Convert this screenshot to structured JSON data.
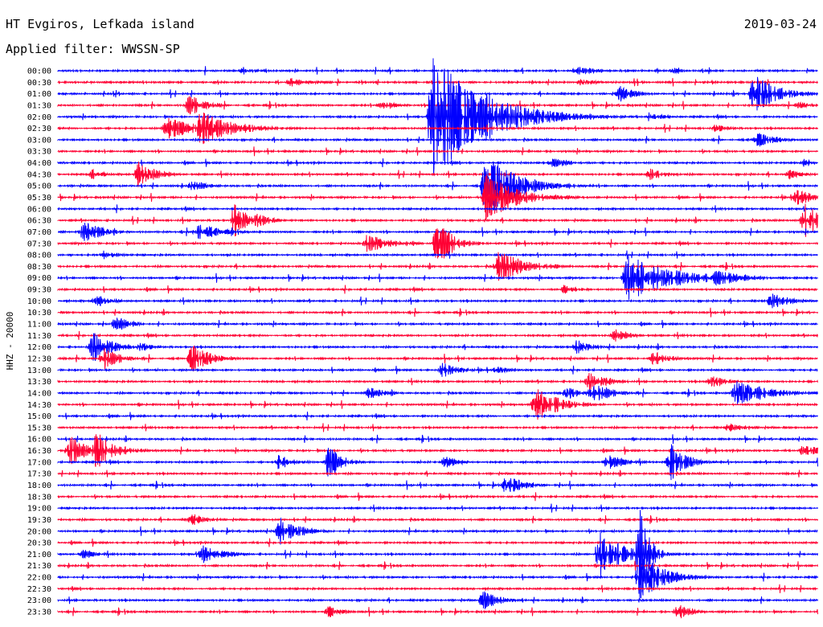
{
  "header": {
    "station": "HT Evgiros, Lefkada island",
    "date": "2019-03-24",
    "filter": "Applied filter: WWSSN-SP"
  },
  "colors": {
    "trace_a": "#0000ff",
    "trace_b": "#ff0033"
  },
  "chart_data": {
    "type": "line",
    "title": "HT Evgiros, Lefkada island",
    "ylabel": "HHZ - 20000",
    "tick_labels": [
      "00:00",
      "00:30",
      "01:00",
      "01:30",
      "02:00",
      "02:30",
      "03:00",
      "03:30",
      "04:00",
      "04:30",
      "05:00",
      "05:30",
      "06:00",
      "06:30",
      "07:00",
      "07:30",
      "08:00",
      "08:30",
      "09:00",
      "09:30",
      "10:00",
      "10:30",
      "11:00",
      "11:30",
      "12:00",
      "12:30",
      "13:00",
      "13:30",
      "14:00",
      "14:30",
      "15:00",
      "15:30",
      "16:00",
      "16:30",
      "17:00",
      "17:30",
      "18:00",
      "18:30",
      "19:00",
      "19:30",
      "20:00",
      "20:30",
      "21:00",
      "21:30",
      "22:00",
      "22:30",
      "23:00",
      "23:30"
    ],
    "row_color_pattern": [
      "trace_a",
      "trace_b"
    ],
    "trace_minutes": 30,
    "events": [
      {
        "row": "00:00",
        "minute": 7.3,
        "amp": 5,
        "dur": 0.8
      },
      {
        "row": "00:00",
        "minute": 20.5,
        "amp": 7,
        "dur": 1.2
      },
      {
        "row": "00:00",
        "minute": 24.3,
        "amp": 4,
        "dur": 0.6
      },
      {
        "row": "00:30",
        "minute": 9.2,
        "amp": 6,
        "dur": 1.4
      },
      {
        "row": "00:30",
        "minute": 20.5,
        "amp": 5,
        "dur": 1.2
      },
      {
        "row": "01:00",
        "minute": 22.2,
        "amp": 10,
        "dur": 1.0
      },
      {
        "row": "01:00",
        "minute": 27.5,
        "amp": 25,
        "dur": 1.5
      },
      {
        "row": "01:30",
        "minute": 5.2,
        "amp": 14,
        "dur": 1.0
      },
      {
        "row": "01:30",
        "minute": 12.8,
        "amp": 6,
        "dur": 1.0
      },
      {
        "row": "01:30",
        "minute": 29.3,
        "amp": 6,
        "dur": 0.6
      },
      {
        "row": "02:00",
        "minute": 14.8,
        "amp": 80,
        "dur": 3.0
      },
      {
        "row": "02:00",
        "minute": 16.9,
        "amp": 30,
        "dur": 3.0
      },
      {
        "row": "02:00",
        "minute": 23.5,
        "amp": 5,
        "dur": 1.0
      },
      {
        "row": "02:30",
        "minute": 4.3,
        "amp": 15,
        "dur": 1.8
      },
      {
        "row": "02:30",
        "minute": 5.6,
        "amp": 25,
        "dur": 2.0
      },
      {
        "row": "02:30",
        "minute": 26.0,
        "amp": 5,
        "dur": 1.0
      },
      {
        "row": "03:00",
        "minute": 27.6,
        "amp": 10,
        "dur": 1.2
      },
      {
        "row": "04:00",
        "minute": 19.5,
        "amp": 6,
        "dur": 1.5
      },
      {
        "row": "04:00",
        "minute": 29.5,
        "amp": 6,
        "dur": 0.6
      },
      {
        "row": "04:30",
        "minute": 1.4,
        "amp": 8,
        "dur": 0.6
      },
      {
        "row": "04:30",
        "minute": 3.2,
        "amp": 18,
        "dur": 1.0
      },
      {
        "row": "04:30",
        "minute": 23.4,
        "amp": 8,
        "dur": 1.0
      },
      {
        "row": "04:30",
        "minute": 28.9,
        "amp": 6,
        "dur": 1.0
      },
      {
        "row": "05:00",
        "minute": 5.3,
        "amp": 6,
        "dur": 1.2
      },
      {
        "row": "05:00",
        "minute": 16.9,
        "amp": 40,
        "dur": 2.0
      },
      {
        "row": "05:30",
        "minute": 16.9,
        "amp": 30,
        "dur": 2.0
      },
      {
        "row": "05:30",
        "minute": 29.2,
        "amp": 12,
        "dur": 1.0
      },
      {
        "row": "06:30",
        "minute": 7.0,
        "amp": 22,
        "dur": 0.8
      },
      {
        "row": "06:30",
        "minute": 7.8,
        "amp": 10,
        "dur": 1.0
      },
      {
        "row": "06:30",
        "minute": 29.5,
        "amp": 22,
        "dur": 1.4
      },
      {
        "row": "07:00",
        "minute": 1.0,
        "amp": 15,
        "dur": 1.2
      },
      {
        "row": "07:00",
        "minute": 5.5,
        "amp": 12,
        "dur": 1.5
      },
      {
        "row": "07:30",
        "minute": 12.2,
        "amp": 12,
        "dur": 1.5
      },
      {
        "row": "07:30",
        "minute": 15.0,
        "amp": 30,
        "dur": 1.0
      },
      {
        "row": "08:00",
        "minute": 1.8,
        "amp": 6,
        "dur": 1.0
      },
      {
        "row": "08:30",
        "minute": 17.4,
        "amp": 20,
        "dur": 1.8
      },
      {
        "row": "09:00",
        "minute": 22.5,
        "amp": 30,
        "dur": 3.0
      },
      {
        "row": "09:00",
        "minute": 26.0,
        "amp": 10,
        "dur": 2.0
      },
      {
        "row": "09:30",
        "minute": 20.0,
        "amp": 6,
        "dur": 1.0
      },
      {
        "row": "10:00",
        "minute": 1.5,
        "amp": 8,
        "dur": 1.0
      },
      {
        "row": "10:00",
        "minute": 28.2,
        "amp": 12,
        "dur": 1.0
      },
      {
        "row": "11:00",
        "minute": 2.3,
        "amp": 10,
        "dur": 1.0
      },
      {
        "row": "11:30",
        "minute": 22.0,
        "amp": 8,
        "dur": 1.0
      },
      {
        "row": "12:00",
        "minute": 1.4,
        "amp": 20,
        "dur": 1.2
      },
      {
        "row": "12:00",
        "minute": 3.2,
        "amp": 6,
        "dur": 1.0
      },
      {
        "row": "12:00",
        "minute": 20.5,
        "amp": 10,
        "dur": 1.0
      },
      {
        "row": "12:30",
        "minute": 1.8,
        "amp": 15,
        "dur": 1.0
      },
      {
        "row": "12:30",
        "minute": 5.3,
        "amp": 18,
        "dur": 1.2
      },
      {
        "row": "12:30",
        "minute": 23.5,
        "amp": 10,
        "dur": 1.0
      },
      {
        "row": "13:00",
        "minute": 15.2,
        "amp": 10,
        "dur": 1.0
      },
      {
        "row": "13:00",
        "minute": 17.3,
        "amp": 5,
        "dur": 1.0
      },
      {
        "row": "13:30",
        "minute": 21.0,
        "amp": 12,
        "dur": 1.2
      },
      {
        "row": "13:30",
        "minute": 25.8,
        "amp": 8,
        "dur": 1.0
      },
      {
        "row": "14:00",
        "minute": 12.3,
        "amp": 8,
        "dur": 1.0
      },
      {
        "row": "14:00",
        "minute": 20.1,
        "amp": 8,
        "dur": 1.0
      },
      {
        "row": "14:00",
        "minute": 21.1,
        "amp": 14,
        "dur": 1.2
      },
      {
        "row": "14:00",
        "minute": 26.8,
        "amp": 18,
        "dur": 2.0
      },
      {
        "row": "14:30",
        "minute": 18.9,
        "amp": 22,
        "dur": 1.5
      },
      {
        "row": "15:30",
        "minute": 26.5,
        "amp": 6,
        "dur": 1.2
      },
      {
        "row": "16:30",
        "minute": 0.5,
        "amp": 20,
        "dur": 1.0
      },
      {
        "row": "16:30",
        "minute": 1.5,
        "amp": 25,
        "dur": 1.2
      },
      {
        "row": "16:30",
        "minute": 29.5,
        "amp": 10,
        "dur": 1.0
      },
      {
        "row": "17:00",
        "minute": 8.7,
        "amp": 10,
        "dur": 1.0
      },
      {
        "row": "17:00",
        "minute": 10.7,
        "amp": 22,
        "dur": 0.8
      },
      {
        "row": "17:00",
        "minute": 15.3,
        "amp": 8,
        "dur": 1.0
      },
      {
        "row": "17:00",
        "minute": 21.7,
        "amp": 10,
        "dur": 1.2
      },
      {
        "row": "17:00",
        "minute": 24.2,
        "amp": 25,
        "dur": 1.0
      },
      {
        "row": "18:00",
        "minute": 17.7,
        "amp": 14,
        "dur": 1.0
      },
      {
        "row": "19:30",
        "minute": 5.3,
        "amp": 8,
        "dur": 1.0
      },
      {
        "row": "20:00",
        "minute": 8.8,
        "amp": 18,
        "dur": 1.2
      },
      {
        "row": "21:00",
        "minute": 1.0,
        "amp": 6,
        "dur": 1.0
      },
      {
        "row": "21:00",
        "minute": 5.7,
        "amp": 14,
        "dur": 1.2
      },
      {
        "row": "21:00",
        "minute": 21.4,
        "amp": 30,
        "dur": 1.5
      },
      {
        "row": "21:00",
        "minute": 23.0,
        "amp": 60,
        "dur": 0.6
      },
      {
        "row": "22:00",
        "minute": 23.0,
        "amp": 30,
        "dur": 1.5
      },
      {
        "row": "23:00",
        "minute": 16.8,
        "amp": 12,
        "dur": 1.2
      },
      {
        "row": "23:30",
        "minute": 10.7,
        "amp": 8,
        "dur": 1.0
      },
      {
        "row": "23:30",
        "minute": 24.5,
        "amp": 10,
        "dur": 0.8
      }
    ]
  }
}
